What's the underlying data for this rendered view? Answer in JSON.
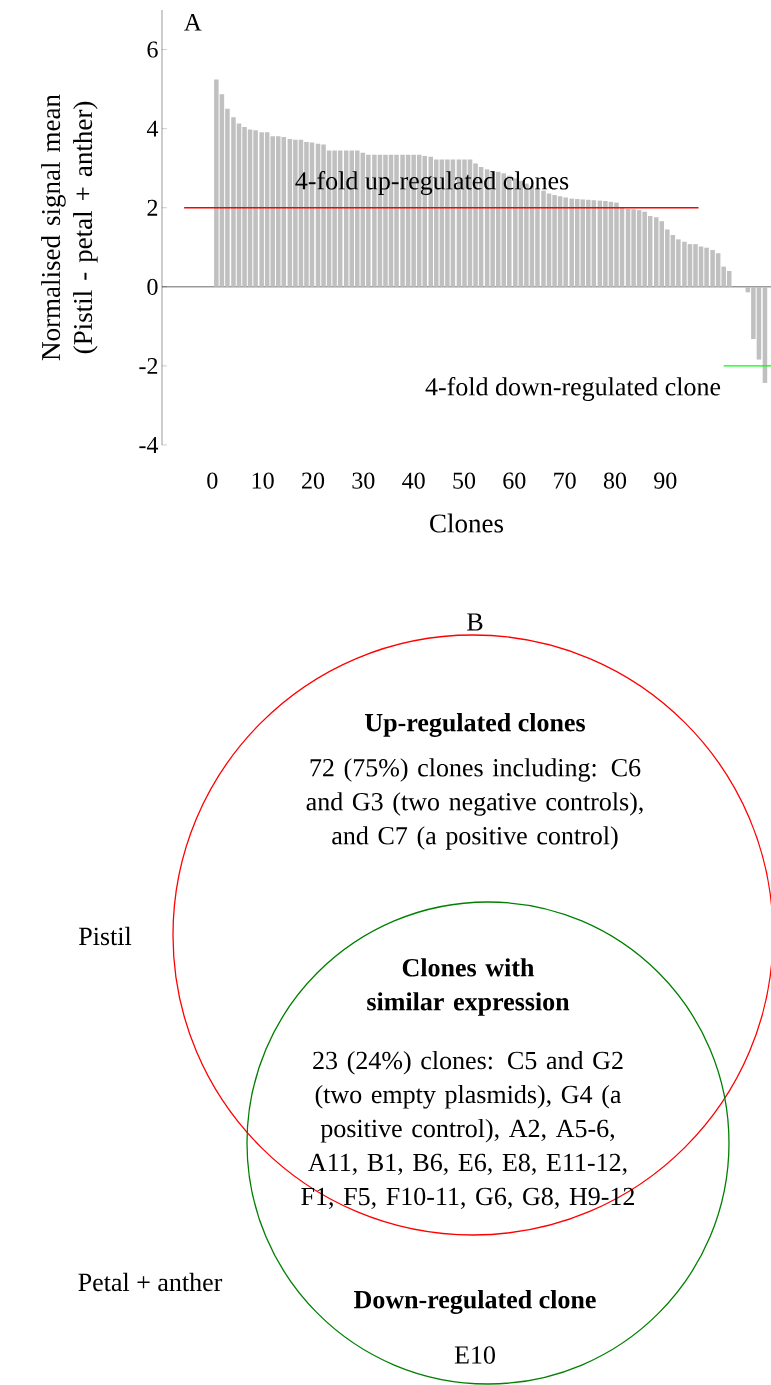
{
  "chart_data": [
    {
      "type": "bar",
      "title": "A",
      "xlabel": "Clones",
      "ylabel": "Normalised signal mean (Pistil - petal + anther)",
      "xlim": [
        -10,
        111
      ],
      "ylim": [
        -4,
        7
      ],
      "xticks": [
        0,
        10,
        20,
        30,
        40,
        50,
        60,
        70,
        80,
        90
      ],
      "yticks": [
        -4,
        -2,
        0,
        2,
        4,
        6
      ],
      "series": [
        {
          "type": "bar",
          "color": "#c0c0c0",
          "x": [
            0.8,
            1.9,
            3.0,
            4.2,
            5.3,
            6.4,
            7.5,
            8.6,
            9.8,
            10.9,
            12.0,
            13.1,
            14.2,
            15.4,
            16.5,
            17.6,
            18.7,
            19.8,
            21.0,
            22.1,
            23.2,
            24.3,
            25.4,
            26.6,
            27.7,
            28.8,
            29.9,
            31.0,
            32.2,
            33.3,
            34.4,
            35.5,
            36.6,
            37.8,
            38.9,
            40.0,
            41.1,
            42.2,
            43.4,
            44.5,
            45.6,
            46.7,
            47.8,
            49.0,
            50.1,
            51.2,
            52.3,
            53.4,
            54.6,
            55.7,
            56.8,
            57.9,
            59.0,
            60.2,
            61.3,
            62.4,
            63.5,
            64.6,
            65.8,
            66.9,
            68.0,
            69.1,
            70.2,
            71.4,
            72.5,
            73.6,
            74.7,
            75.8,
            77.0,
            78.1,
            79.2,
            80.3,
            81.4,
            82.6,
            83.7,
            84.8,
            85.9,
            87.0,
            88.2,
            89.3,
            90.4,
            91.5,
            92.6,
            93.8,
            94.9,
            96.0,
            97.1,
            98.2,
            99.4,
            100.5,
            101.6,
            102.7,
            106.4,
            107.5,
            108.6,
            109.8
          ],
          "values": [
            5.24,
            4.87,
            4.5,
            4.29,
            4.13,
            4.04,
            3.98,
            3.96,
            3.91,
            3.91,
            3.81,
            3.81,
            3.79,
            3.74,
            3.72,
            3.72,
            3.66,
            3.65,
            3.62,
            3.6,
            3.45,
            3.45,
            3.45,
            3.45,
            3.45,
            3.45,
            3.39,
            3.34,
            3.34,
            3.34,
            3.34,
            3.34,
            3.34,
            3.34,
            3.34,
            3.34,
            3.34,
            3.31,
            3.29,
            3.22,
            3.22,
            3.22,
            3.22,
            3.22,
            3.22,
            3.22,
            3.12,
            3.03,
            2.97,
            2.93,
            2.91,
            2.87,
            2.81,
            2.74,
            2.68,
            2.61,
            2.55,
            2.49,
            2.43,
            2.36,
            2.32,
            2.29,
            2.26,
            2.23,
            2.22,
            2.21,
            2.2,
            2.19,
            2.18,
            2.17,
            2.15,
            2.13,
            1.99,
            1.97,
            1.96,
            1.94,
            1.9,
            1.79,
            1.76,
            1.66,
            1.45,
            1.31,
            1.2,
            1.14,
            1.08,
            1.08,
            1.02,
            0.99,
            0.93,
            0.85,
            0.51,
            0.4,
            -0.14,
            -1.32,
            -1.84,
            -2.43
          ]
        },
        {
          "type": "line",
          "color": "#ff0000",
          "x": [
            -5.6,
            96.6
          ],
          "values": [
            2,
            2
          ]
        },
        {
          "type": "line",
          "color": "#00ff00",
          "x": [
            101.6,
            111
          ],
          "values": [
            -2,
            -2
          ]
        }
      ],
      "annotations": [
        "4-fold up-regulated clones",
        "4-fold down-regulated clone"
      ]
    },
    {
      "type": "other",
      "title": "B",
      "annotations": [
        "Up-regulated clones",
        "72 (75%) clones including: C6 and G3 (two negative controls), and C7 (a positive control)",
        "Pistil",
        "Clones with similar expression",
        "23 (24%) clones: C5 and G2 (two empty plasmids), G4 (a positive control), A2, A5-6, A11, B1, B6, E6, E8, E11-12, F1, F5, F10-11, G6, G8, H9-12",
        "Petal + anther",
        "Down-regulated clone",
        "E10"
      ]
    }
  ]
}
